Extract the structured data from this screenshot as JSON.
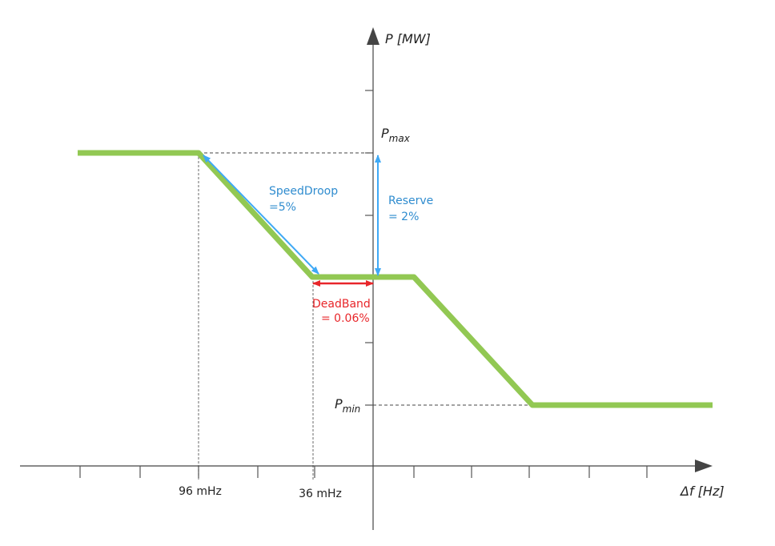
{
  "axes": {
    "y_label": "P [MW]",
    "x_label": "Δf [Hz]"
  },
  "levels": {
    "pmax": {
      "symbol": "P",
      "subscript": "max"
    },
    "pmin": {
      "symbol": "P",
      "subscript": "min"
    }
  },
  "x_marks": [
    "96 mHz",
    "36 mHz"
  ],
  "annotations": {
    "speed_droop": {
      "name": "SpeedDroop",
      "value": "=5%"
    },
    "reserve": {
      "name": "Reserve",
      "value": "= 2%"
    },
    "dead_band": {
      "name": "DeadBand",
      "value": "= 0.06%"
    }
  }
}
